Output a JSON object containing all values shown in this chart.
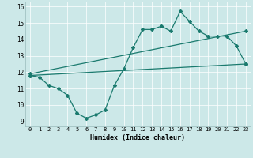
{
  "xlabel": "Humidex (Indice chaleur)",
  "xlim": [
    -0.5,
    23.5
  ],
  "ylim": [
    8.7,
    16.3
  ],
  "xticks": [
    0,
    1,
    2,
    3,
    4,
    5,
    6,
    7,
    8,
    9,
    10,
    11,
    12,
    13,
    14,
    15,
    16,
    17,
    18,
    19,
    20,
    21,
    22,
    23
  ],
  "yticks": [
    9,
    10,
    11,
    12,
    13,
    14,
    15,
    16
  ],
  "bg_color": "#cce8e8",
  "line_color": "#1a7a6e",
  "line1_x": [
    0,
    1,
    2,
    3,
    4,
    5,
    6,
    7,
    8,
    9,
    10,
    11,
    12,
    13,
    14,
    15,
    16,
    17,
    18,
    19,
    20,
    21,
    22,
    23
  ],
  "line1_y": [
    11.8,
    11.7,
    11.2,
    11.0,
    10.6,
    9.5,
    9.2,
    9.4,
    9.7,
    11.2,
    12.2,
    13.5,
    14.6,
    14.6,
    14.8,
    14.5,
    15.7,
    15.1,
    14.5,
    14.2,
    14.2,
    14.2,
    13.6,
    12.5
  ],
  "line2_x": [
    0,
    23
  ],
  "line2_y": [
    11.8,
    12.5
  ],
  "line3_x": [
    0,
    23
  ],
  "line3_y": [
    11.9,
    14.5
  ]
}
